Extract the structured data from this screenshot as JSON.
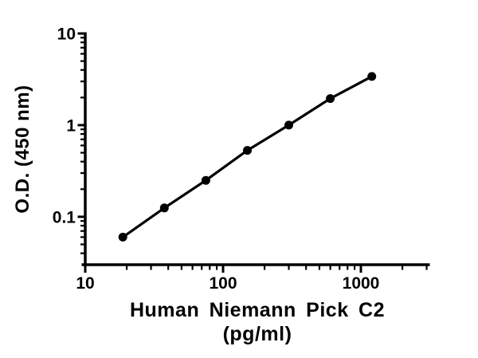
{
  "figure": {
    "background_color": "#ffffff",
    "ink_color": "#000000"
  },
  "chart_data": {
    "type": "scatter",
    "subtype": "standard-curve-line-with-markers",
    "title": "",
    "xlabel_line1": "Human Niemann Pick C2",
    "xlabel_line2": "(pg/ml)",
    "ylabel": "O.D. (450 nm)",
    "x_scale": "log",
    "y_scale": "log",
    "xlim": [
      10,
      3162
    ],
    "ylim": [
      0.03,
      10
    ],
    "grid": false,
    "legend": null,
    "marker": "filled-circle",
    "line_color": "#000000",
    "marker_color": "#000000",
    "x": [
      18.75,
      37.5,
      75,
      150,
      300,
      600,
      1200
    ],
    "y": [
      0.06,
      0.125,
      0.25,
      0.53,
      1.0,
      1.95,
      3.4
    ],
    "x_major_ticks": [
      {
        "value": 10,
        "label": "10"
      },
      {
        "value": 100,
        "label": "100"
      },
      {
        "value": 1000,
        "label": "1000"
      }
    ],
    "x_minor_ticks": [
      20,
      30,
      40,
      50,
      60,
      70,
      80,
      90,
      200,
      300,
      400,
      500,
      600,
      700,
      800,
      900,
      2000,
      3000
    ],
    "y_major_ticks": [
      {
        "value": 0.1,
        "label": "0.1"
      },
      {
        "value": 1,
        "label": "1"
      },
      {
        "value": 10,
        "label": "10"
      }
    ],
    "y_minor_ticks": [
      0.04,
      0.05,
      0.06,
      0.07,
      0.08,
      0.09,
      0.2,
      0.3,
      0.4,
      0.5,
      0.6,
      0.7,
      0.8,
      0.9,
      2,
      3,
      4,
      5,
      6,
      7,
      8,
      9
    ]
  }
}
